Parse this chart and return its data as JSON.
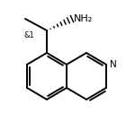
{
  "background_color": "#ffffff",
  "line_color": "#000000",
  "lw": 1.4,
  "figsize": [
    1.5,
    1.54
  ],
  "dpi": 100,
  "NH2_text": "NH₂",
  "NH2_fontsize": 8.0,
  "N_ring_text": "N",
  "N_ring_fontsize": 7.5,
  "stereo_text": "&1",
  "stereo_fontsize": 6.0
}
